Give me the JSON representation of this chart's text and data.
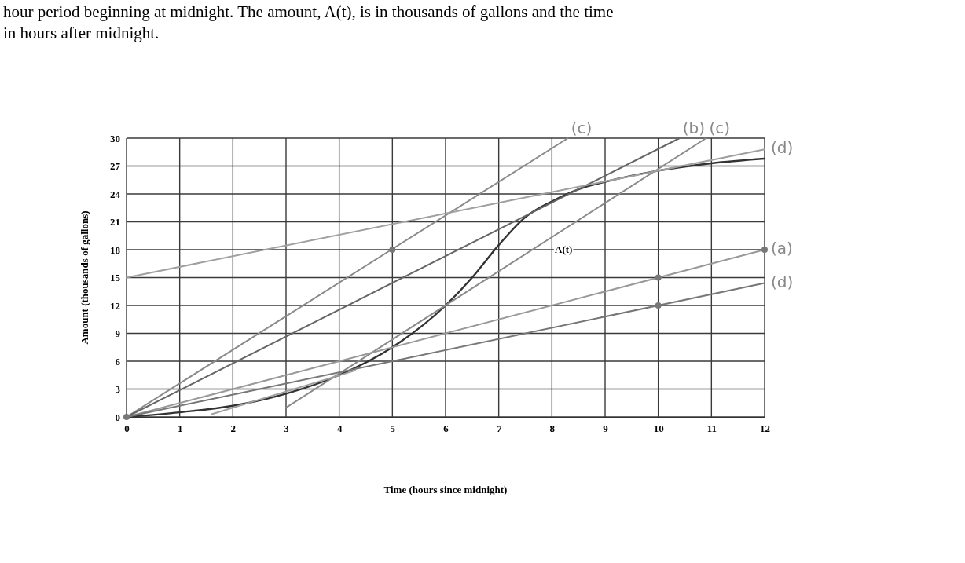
{
  "chart_data": {
    "type": "line",
    "xlabel": "Time (hours since midnight)",
    "ylabel": "Amount (thousands of gallons)",
    "annotations": [
      "hour period beginning at midnight. The amount, A(t), is in thousands of gallons and the time",
      "in hours after midnight.",
      "A(t)"
    ],
    "xlim": [
      0,
      12
    ],
    "ylim": [
      0,
      30
    ],
    "xticks": [
      0,
      1,
      2,
      3,
      4,
      5,
      6,
      7,
      8,
      9,
      10,
      11,
      12
    ],
    "yticks": [
      0,
      3,
      6,
      9,
      12,
      15,
      18,
      21,
      24,
      27,
      30
    ],
    "grid": true,
    "marker": "none",
    "line_style": "solid",
    "series": [
      {
        "color": "#333333",
        "x": [
          0,
          1,
          2,
          3,
          4,
          5,
          6,
          6.5,
          7,
          7.5,
          8,
          8.5,
          9,
          10,
          11,
          12
        ],
        "values": [
          0,
          0.5,
          1.2,
          2.5,
          4.5,
          7.5,
          12,
          15,
          18.5,
          21.5,
          23.2,
          24.5,
          25.3,
          26.5,
          27.3,
          27.8
        ]
      },
      {
        "name": "(c)",
        "color": "#8a8a8a",
        "x": [
          0,
          8.3
        ],
        "values": [
          0,
          30
        ]
      },
      {
        "name": "(b)",
        "color": "#666666",
        "x": [
          0,
          10.4
        ],
        "values": [
          0,
          30
        ]
      },
      {
        "name": "(c)",
        "color": "#8a8a8a",
        "x": [
          3,
          10.9
        ],
        "values": [
          1,
          30
        ]
      },
      {
        "name": "(d)",
        "color": "#a0a0a0",
        "x": [
          0,
          12
        ],
        "values": [
          15,
          28.8
        ]
      },
      {
        "name": "(a)",
        "color": "#999999",
        "x": [
          0,
          12
        ],
        "values": [
          0,
          18
        ]
      },
      {
        "name": "(d)",
        "color": "#777777",
        "x": [
          0,
          12
        ],
        "values": [
          0,
          14.4
        ]
      },
      {
        "color": "#a0a0a0",
        "x": [
          1.6,
          4.3
        ],
        "values": [
          0.3,
          5
        ]
      },
      {
        "type": "scatter",
        "color": "#777777",
        "marker": "circle",
        "x": [
          0,
          5,
          10,
          10,
          12
        ],
        "values": [
          0,
          18,
          15,
          12,
          18
        ]
      }
    ]
  }
}
